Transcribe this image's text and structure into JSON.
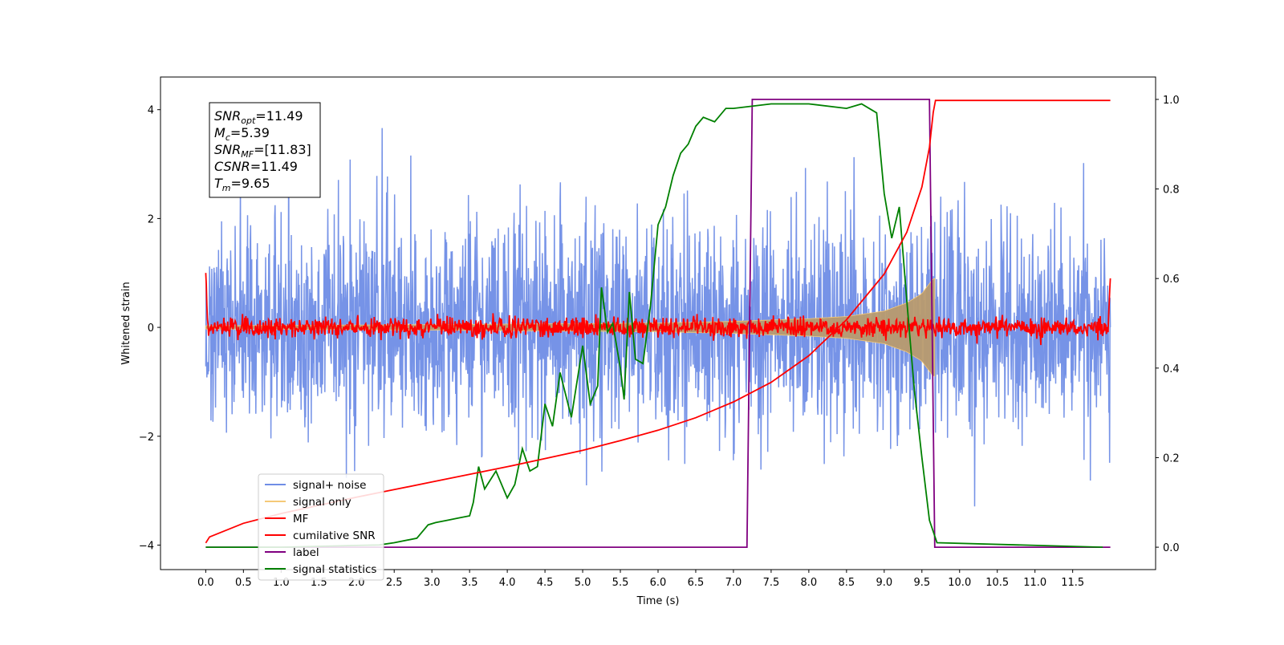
{
  "chart_data": {
    "type": "line",
    "title": "",
    "xlabel": "Time (s)",
    "ylabel": "Whitened strain",
    "xlim": [
      -0.6,
      12.6
    ],
    "ylim": [
      -4.45,
      4.6
    ],
    "ylim_right": [
      -0.05,
      1.05
    ],
    "x_ticks": [
      "0.0",
      "0.5",
      "1.0",
      "1.5",
      "2.0",
      "2.5",
      "3.0",
      "3.5",
      "4.0",
      "4.5",
      "5.0",
      "5.5",
      "6.0",
      "6.5",
      "7.0",
      "7.5",
      "8.0",
      "8.5",
      "9.0",
      "9.5",
      "10.0",
      "10.5",
      "11.0",
      "11.5"
    ],
    "y_ticks_left": [
      "4",
      "2",
      "0",
      "−2",
      "−4"
    ],
    "y_ticks_right": [
      "1.0",
      "0.8",
      "0.6",
      "0.4",
      "0.2",
      "0.0"
    ],
    "grid": false,
    "legend_position": "lower-left",
    "series": [
      {
        "name": "signal+ noise",
        "axis": "left",
        "color": "#6f8de6",
        "kind": "noise",
        "sigma": 1.0,
        "x_range": [
          0,
          12
        ]
      },
      {
        "name": "signal only",
        "axis": "left",
        "color": "#f5c978",
        "kind": "chirp",
        "envelope": [
          [
            0,
            0.03
          ],
          [
            3,
            0.05
          ],
          [
            6,
            0.08
          ],
          [
            7,
            0.11
          ],
          [
            8,
            0.16
          ],
          [
            8.5,
            0.2
          ],
          [
            9,
            0.3
          ],
          [
            9.3,
            0.45
          ],
          [
            9.5,
            0.62
          ],
          [
            9.65,
            0.9
          ]
        ],
        "end": 9.67
      },
      {
        "name": "MF",
        "axis": "left",
        "color": "#ff0000",
        "kind": "mf_noise",
        "sigma": 0.09,
        "x_range": [
          0,
          12
        ],
        "edge_start": 1.0,
        "edge_end": 0.9
      },
      {
        "name": "cumilative SNR",
        "axis": "left",
        "color": "#ff0000",
        "points": [
          [
            0,
            -3.96
          ],
          [
            0.05,
            -3.85
          ],
          [
            0.5,
            -3.6
          ],
          [
            1,
            -3.42
          ],
          [
            1.5,
            -3.27
          ],
          [
            2,
            -3.12
          ],
          [
            2.5,
            -2.98
          ],
          [
            3,
            -2.84
          ],
          [
            3.5,
            -2.7
          ],
          [
            4,
            -2.56
          ],
          [
            4.5,
            -2.41
          ],
          [
            5,
            -2.26
          ],
          [
            5.5,
            -2.08
          ],
          [
            6,
            -1.89
          ],
          [
            6.5,
            -1.66
          ],
          [
            7,
            -1.37
          ],
          [
            7.5,
            -1.01
          ],
          [
            8,
            -0.52
          ],
          [
            8.5,
            0.14
          ],
          [
            9,
            0.98
          ],
          [
            9.3,
            1.75
          ],
          [
            9.5,
            2.58
          ],
          [
            9.6,
            3.31
          ],
          [
            9.65,
            3.95
          ],
          [
            9.68,
            4.17
          ],
          [
            12,
            4.17
          ]
        ]
      },
      {
        "name": "label",
        "axis": "right",
        "color": "#800080",
        "points": [
          [
            0,
            0
          ],
          [
            7.18,
            0
          ],
          [
            7.25,
            1
          ],
          [
            9.6,
            1
          ],
          [
            9.67,
            0
          ],
          [
            12,
            0
          ]
        ]
      },
      {
        "name": "signal statistics",
        "axis": "right",
        "color": "#008000",
        "points": [
          [
            0,
            0
          ],
          [
            1,
            0
          ],
          [
            2,
            0.004
          ],
          [
            2.3,
            0.005
          ],
          [
            2.5,
            0.01
          ],
          [
            2.8,
            0.02
          ],
          [
            2.95,
            0.05
          ],
          [
            3.05,
            0.055
          ],
          [
            3.2,
            0.06
          ],
          [
            3.35,
            0.065
          ],
          [
            3.5,
            0.07
          ],
          [
            3.55,
            0.1
          ],
          [
            3.62,
            0.18
          ],
          [
            3.7,
            0.13
          ],
          [
            3.85,
            0.17
          ],
          [
            4.0,
            0.11
          ],
          [
            4.1,
            0.14
          ],
          [
            4.2,
            0.22
          ],
          [
            4.3,
            0.17
          ],
          [
            4.4,
            0.18
          ],
          [
            4.5,
            0.32
          ],
          [
            4.6,
            0.27
          ],
          [
            4.7,
            0.39
          ],
          [
            4.85,
            0.29
          ],
          [
            5.0,
            0.45
          ],
          [
            5.1,
            0.32
          ],
          [
            5.2,
            0.36
          ],
          [
            5.25,
            0.58
          ],
          [
            5.33,
            0.48
          ],
          [
            5.4,
            0.5
          ],
          [
            5.5,
            0.4
          ],
          [
            5.55,
            0.33
          ],
          [
            5.62,
            0.57
          ],
          [
            5.7,
            0.42
          ],
          [
            5.8,
            0.41
          ],
          [
            5.9,
            0.54
          ],
          [
            6.0,
            0.72
          ],
          [
            6.1,
            0.76
          ],
          [
            6.2,
            0.83
          ],
          [
            6.3,
            0.88
          ],
          [
            6.4,
            0.9
          ],
          [
            6.5,
            0.94
          ],
          [
            6.6,
            0.96
          ],
          [
            6.75,
            0.95
          ],
          [
            6.9,
            0.98
          ],
          [
            7.0,
            0.98
          ],
          [
            7.5,
            0.99
          ],
          [
            8.0,
            0.99
          ],
          [
            8.5,
            0.98
          ],
          [
            8.7,
            0.99
          ],
          [
            8.9,
            0.97
          ],
          [
            9.0,
            0.79
          ],
          [
            9.1,
            0.69
          ],
          [
            9.2,
            0.76
          ],
          [
            9.3,
            0.55
          ],
          [
            9.4,
            0.35
          ],
          [
            9.5,
            0.2
          ],
          [
            9.6,
            0.06
          ],
          [
            9.7,
            0.01
          ],
          [
            11.9,
            0.0
          ]
        ]
      }
    ],
    "annotation": {
      "lines": [
        {
          "base": "SNR",
          "sub": "opt",
          "value": "=11.49"
        },
        {
          "base": "M",
          "sub": "c",
          "value": "=5.39"
        },
        {
          "base": "SNR",
          "sub": "MF",
          "value": "=[11.83]"
        },
        {
          "base": "CSNR",
          "sub": "",
          "value": "=11.49"
        },
        {
          "base": "T",
          "sub": "m",
          "value": "=9.65"
        }
      ]
    }
  }
}
